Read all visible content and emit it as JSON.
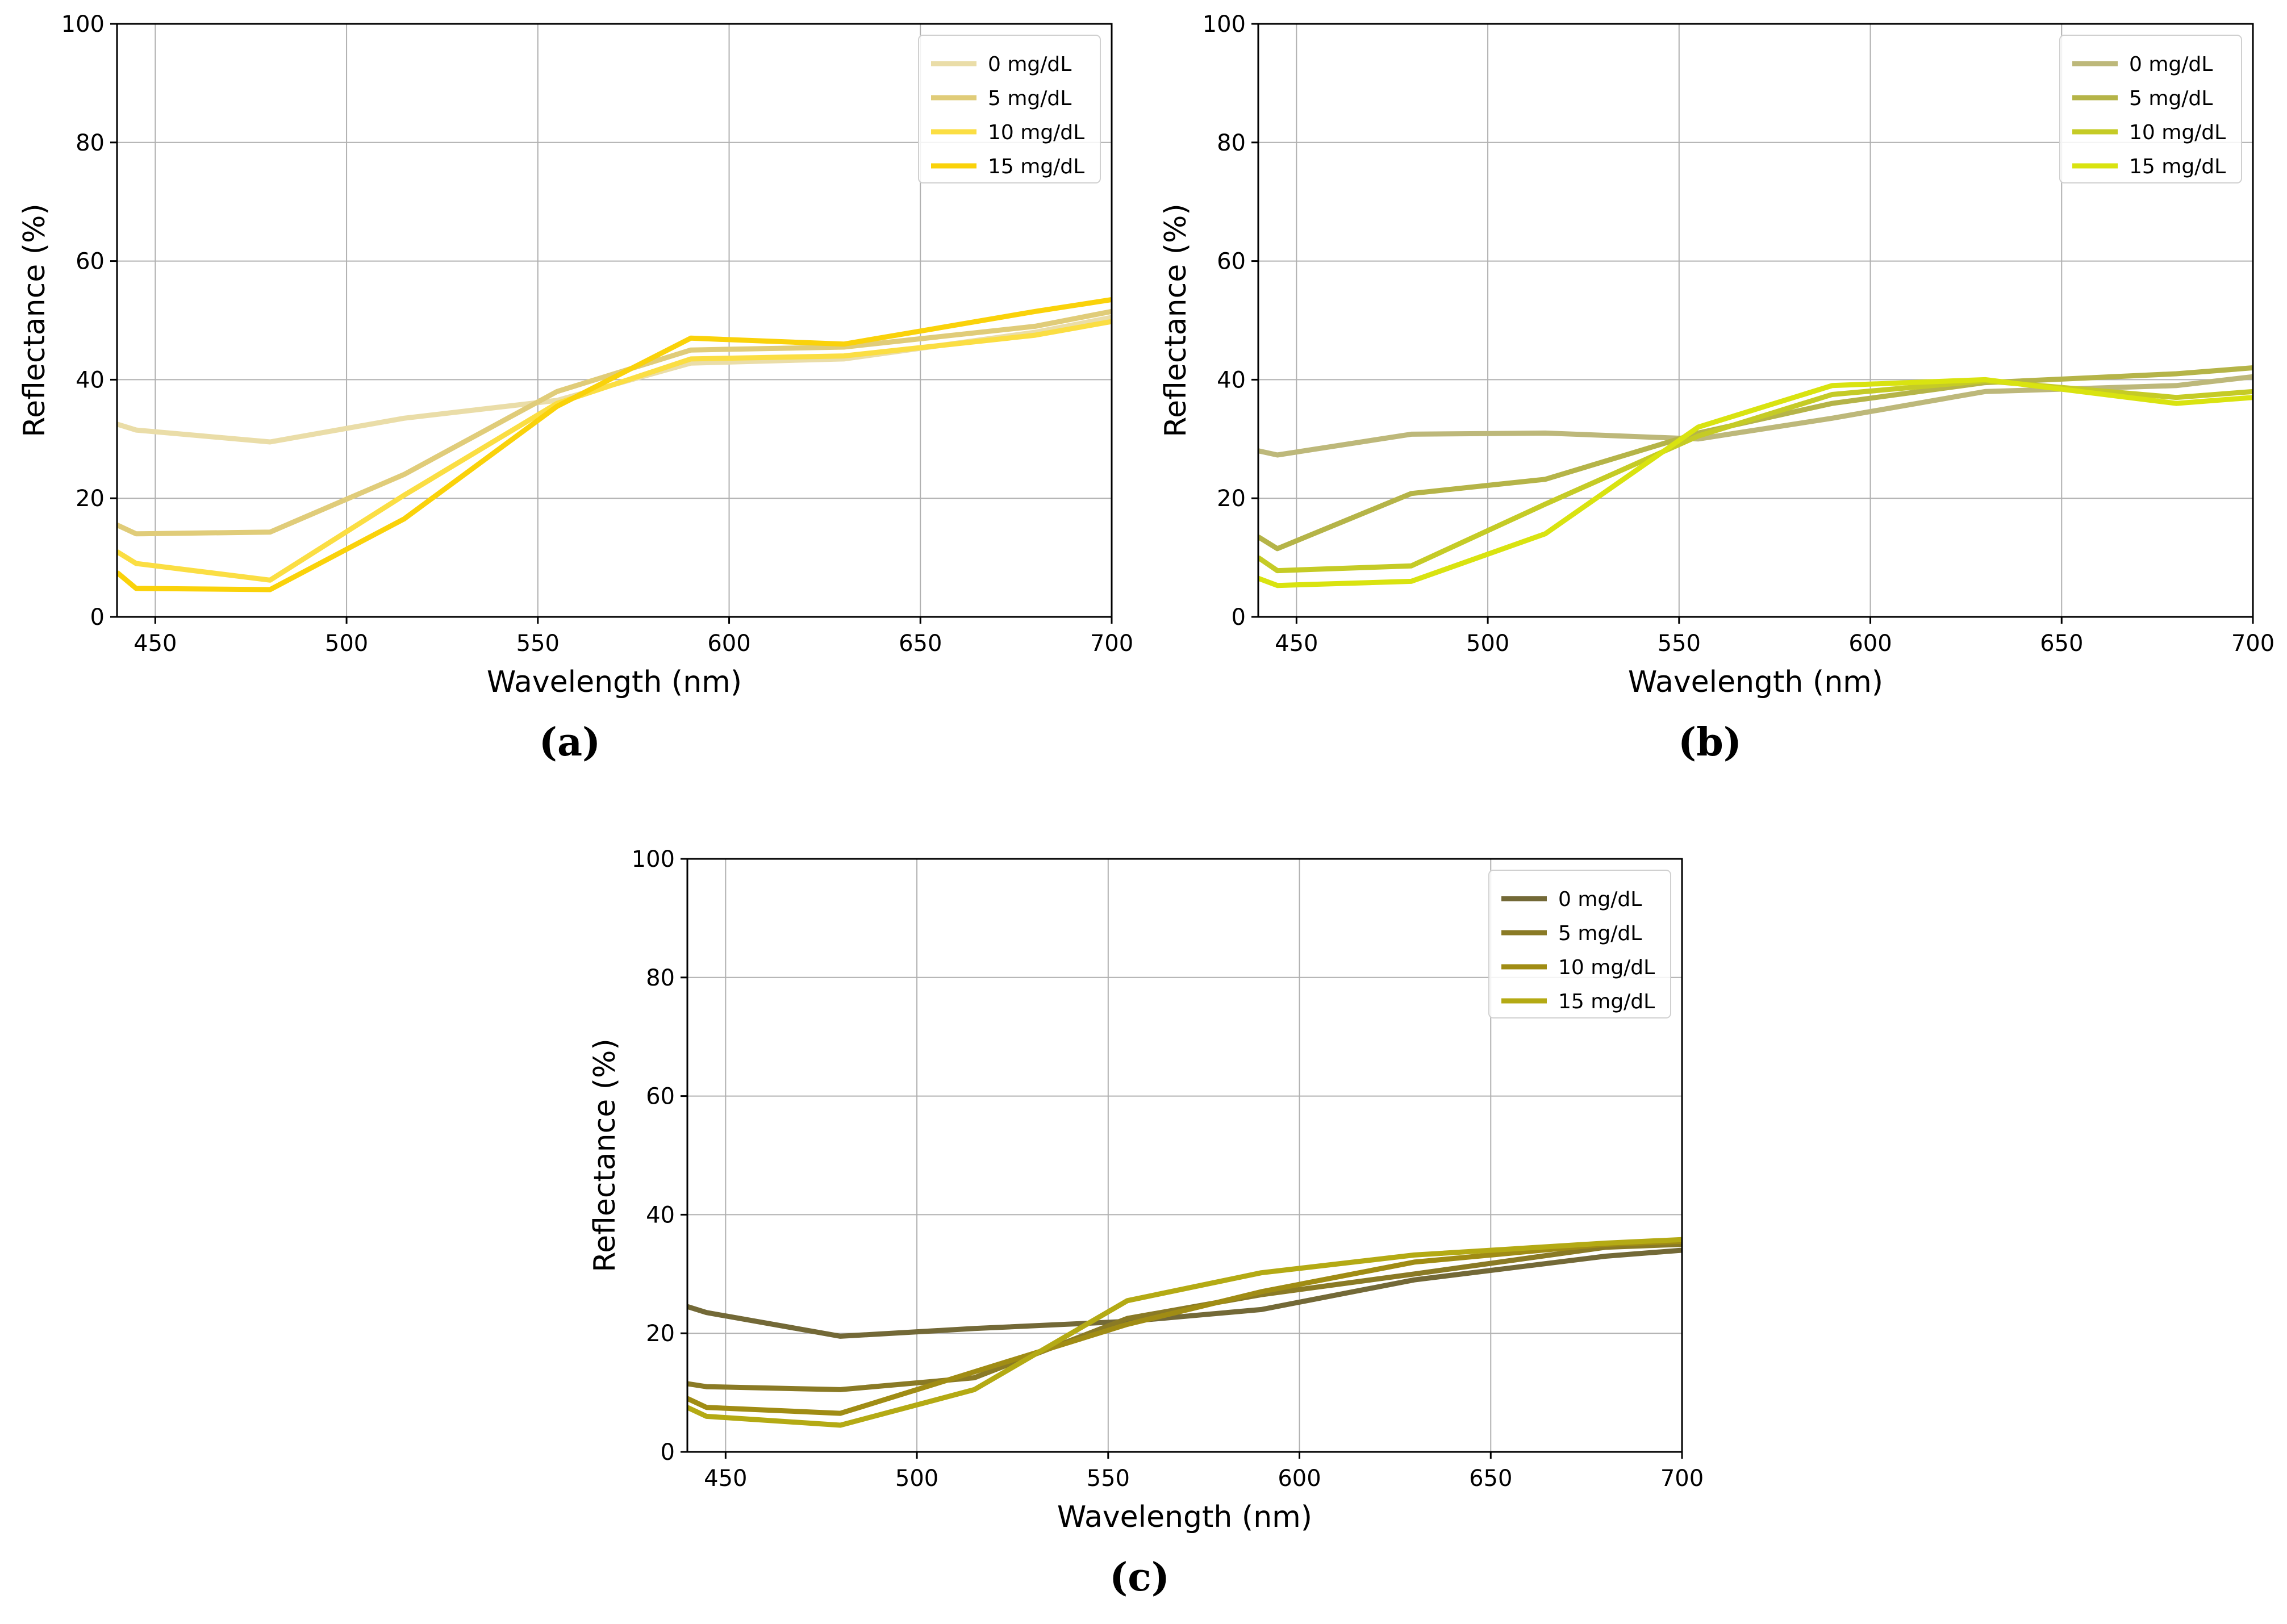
{
  "figure": {
    "captions": [
      "(a)",
      "(b)",
      "(c)"
    ]
  },
  "chart_data": [
    {
      "type": "line",
      "caption": "(a)",
      "xlabel": "Wavelength (nm)",
      "ylabel": "Reflectance (%)",
      "xlim": [
        440,
        700
      ],
      "ylim": [
        0,
        100
      ],
      "xticks": [
        450,
        500,
        550,
        600,
        650,
        700
      ],
      "yticks": [
        0,
        20,
        40,
        60,
        80,
        100
      ],
      "grid": true,
      "legend_position": "top-right",
      "x": [
        440,
        445,
        480,
        515,
        555,
        590,
        630,
        680,
        700
      ],
      "series": [
        {
          "name": "0 mg/dL",
          "color": "#EADDA8",
          "values": [
            32.5,
            31.5,
            29.5,
            33.5,
            36.5,
            42.8,
            43.5,
            48.0,
            50.5
          ]
        },
        {
          "name": "5 mg/dL",
          "color": "#E0CC79",
          "values": [
            15.5,
            14.0,
            14.3,
            24.0,
            38.0,
            45.0,
            45.5,
            49.0,
            51.5
          ]
        },
        {
          "name": "10 mg/dL",
          "color": "#FBDE43",
          "values": [
            11.0,
            9.0,
            6.2,
            20.5,
            36.0,
            43.5,
            44.0,
            47.5,
            49.8
          ]
        },
        {
          "name": "15 mg/dL",
          "color": "#FAD20A",
          "values": [
            7.5,
            4.8,
            4.6,
            16.5,
            35.5,
            47.0,
            46.0,
            51.5,
            53.5
          ]
        }
      ]
    },
    {
      "type": "line",
      "caption": "(b)",
      "xlabel": "Wavelength (nm)",
      "ylabel": "Reflectance (%)",
      "xlim": [
        440,
        700
      ],
      "ylim": [
        0,
        100
      ],
      "xticks": [
        450,
        500,
        550,
        600,
        650,
        700
      ],
      "yticks": [
        0,
        20,
        40,
        60,
        80,
        100
      ],
      "grid": true,
      "legend_position": "top-right",
      "x": [
        440,
        445,
        480,
        515,
        555,
        590,
        630,
        680,
        700
      ],
      "series": [
        {
          "name": "0 mg/dL",
          "color": "#BDB87A",
          "values": [
            28.0,
            27.3,
            30.8,
            31.0,
            30.0,
            33.5,
            38.0,
            39.0,
            40.5
          ]
        },
        {
          "name": "5 mg/dL",
          "color": "#B5B448",
          "values": [
            13.5,
            11.5,
            20.8,
            23.2,
            31.0,
            36.0,
            39.5,
            41.0,
            42.0
          ]
        },
        {
          "name": "10 mg/dL",
          "color": "#C5CB26",
          "values": [
            10.0,
            7.8,
            8.6,
            19.0,
            30.5,
            37.5,
            39.8,
            37.0,
            38.0
          ]
        },
        {
          "name": "15 mg/dL",
          "color": "#D9E310",
          "values": [
            6.5,
            5.3,
            6.0,
            14.0,
            32.0,
            39.0,
            40.0,
            36.0,
            37.0
          ]
        }
      ]
    },
    {
      "type": "line",
      "caption": "(c)",
      "xlabel": "Wavelength (nm)",
      "ylabel": "Reflectance (%)",
      "xlim": [
        440,
        700
      ],
      "ylim": [
        0,
        100
      ],
      "xticks": [
        450,
        500,
        550,
        600,
        650,
        700
      ],
      "yticks": [
        0,
        20,
        40,
        60,
        80,
        100
      ],
      "grid": true,
      "legend_position": "top-right",
      "x": [
        440,
        445,
        480,
        515,
        555,
        590,
        630,
        680,
        700
      ],
      "series": [
        {
          "name": "0 mg/dL",
          "color": "#736937",
          "values": [
            24.5,
            23.5,
            19.5,
            20.8,
            22.0,
            24.0,
            29.0,
            33.0,
            34.0
          ]
        },
        {
          "name": "5 mg/dL",
          "color": "#8A7A25",
          "values": [
            11.5,
            11.0,
            10.5,
            12.5,
            22.5,
            26.5,
            30.0,
            34.5,
            35.0
          ]
        },
        {
          "name": "10 mg/dL",
          "color": "#A08C14",
          "values": [
            9.0,
            7.5,
            6.5,
            13.5,
            21.5,
            27.0,
            32.0,
            35.0,
            35.5
          ]
        },
        {
          "name": "15 mg/dL",
          "color": "#B4AA14",
          "values": [
            7.5,
            6.0,
            4.5,
            10.5,
            25.5,
            30.2,
            33.2,
            35.2,
            35.8
          ]
        }
      ]
    }
  ]
}
